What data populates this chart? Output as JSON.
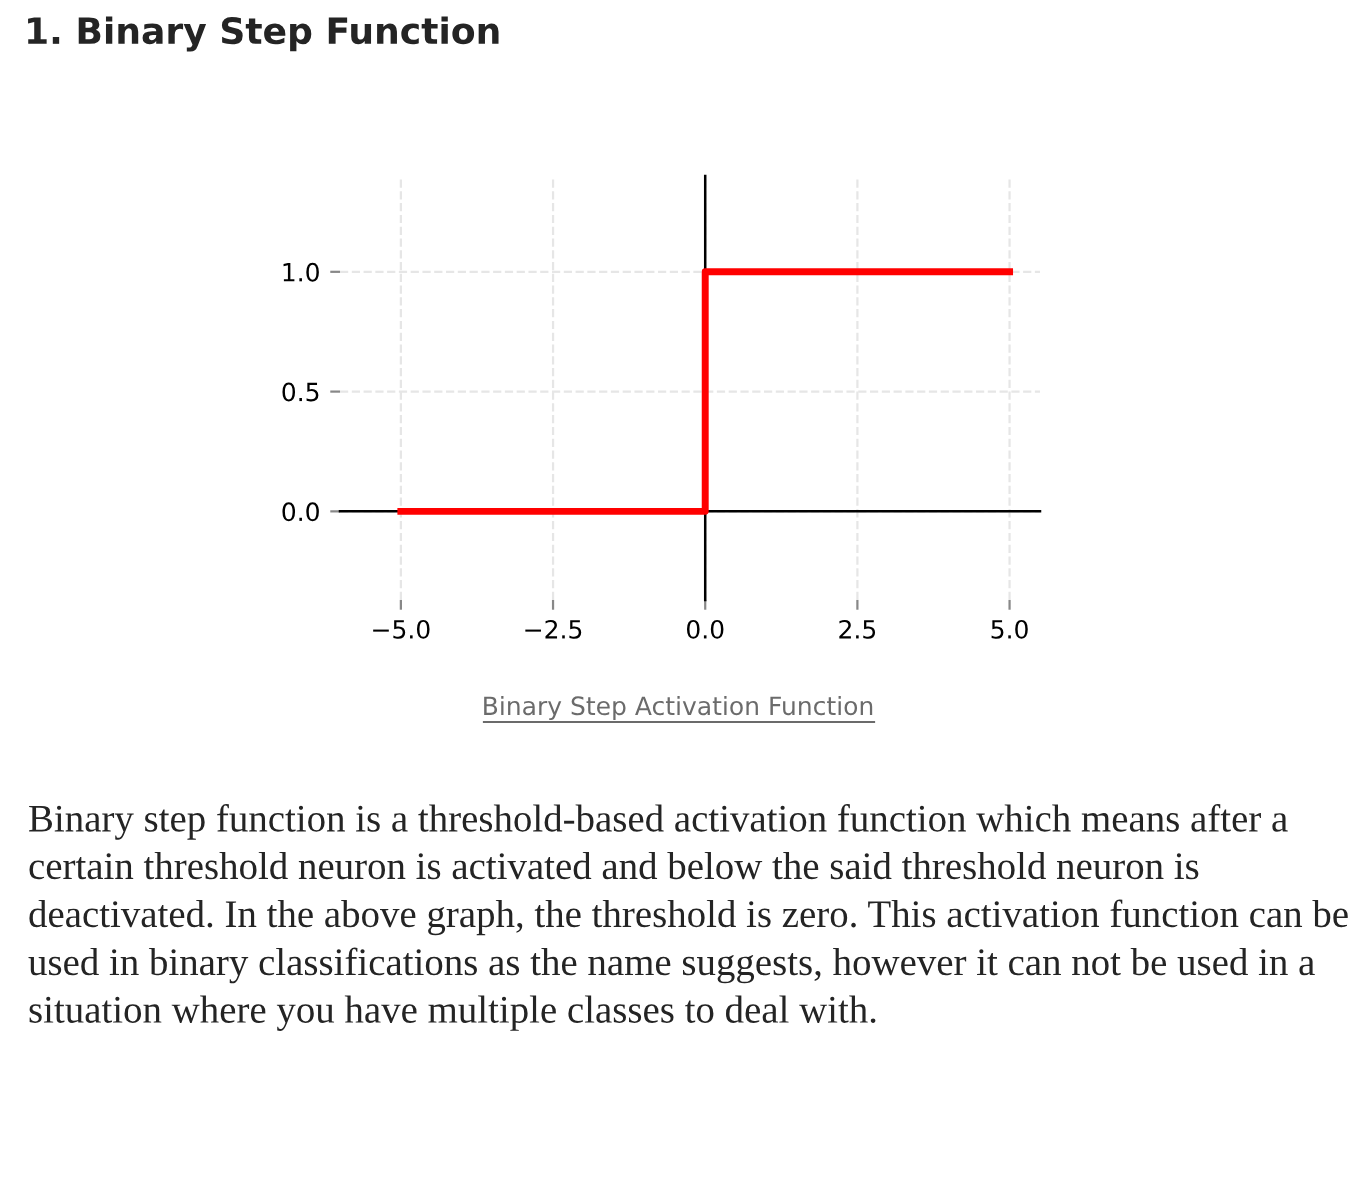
{
  "chart_data": {
    "type": "line",
    "title": "1. Binary Step Function",
    "series": [
      {
        "color": "#ff0000",
        "x": [
          -5,
          0,
          0,
          5
        ],
        "values": [
          0,
          0,
          1,
          1
        ]
      }
    ],
    "xlim": [
      -6.0,
      5.5
    ],
    "ylim": [
      -0.37,
      1.4
    ],
    "xticks": [
      {
        "value": -5,
        "label": "−5.0"
      },
      {
        "value": -2.5,
        "label": "−2.5"
      },
      {
        "value": 0,
        "label": "0.0"
      },
      {
        "value": 2.5,
        "label": "2.5"
      },
      {
        "value": 5,
        "label": "5.0"
      }
    ],
    "yticks": [
      {
        "value": 0,
        "label": "0.0"
      },
      {
        "value": 0.5,
        "label": "0.5"
      },
      {
        "value": 1,
        "label": "1.0"
      }
    ],
    "grid": true,
    "legend": false,
    "marker": "none",
    "line_style": "solid",
    "annotations": [
      "Binary Step Activation Function",
      "Binary step function is a threshold-based activation function which means after a certain threshold neuron is activated and below the said threshold neuron is deactivated. In the above graph, the threshold is zero. This activation function can be used in binary classifications as the name suggests, however it can not be used in a situation where you have multiple classes to deal with."
    ]
  }
}
